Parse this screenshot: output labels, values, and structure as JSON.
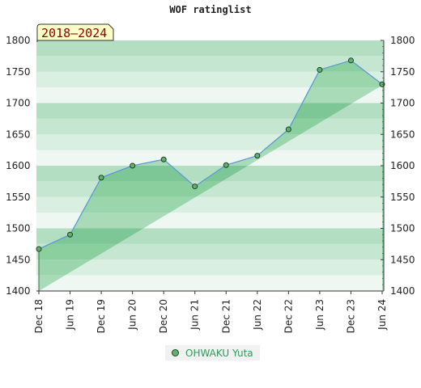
{
  "chart_data": {
    "type": "area",
    "title": "WOF ratinglist",
    "period_badge": "2018–2024",
    "x": [
      "Dec 18",
      "Jun 19",
      "Dec 19",
      "Jun 20",
      "Dec 20",
      "Jun 21",
      "Dec 21",
      "Jun 22",
      "Dec 22",
      "Jun 23",
      "Dec 23",
      "Jun 24"
    ],
    "ylim": [
      1400,
      1800
    ],
    "yticks": [
      1400,
      1450,
      1500,
      1550,
      1600,
      1650,
      1700,
      1750,
      1800
    ],
    "ytick_labels": [
      "1400",
      "1450",
      "1500",
      "1550",
      "1600",
      "1650",
      "1700",
      "1750",
      "1800"
    ],
    "series": [
      {
        "name": "OHWAKU Yuta",
        "values": [
          1467,
          1490,
          1581,
          1600,
          1610,
          1567,
          1601,
          1616,
          1658,
          1753,
          1768,
          1730
        ]
      }
    ],
    "colors": {
      "line": "#5b9bd5",
      "marker": "#5fb36d",
      "legend_text": "#2e9a5a"
    },
    "legend_position": "bottom-center",
    "grid": true
  }
}
